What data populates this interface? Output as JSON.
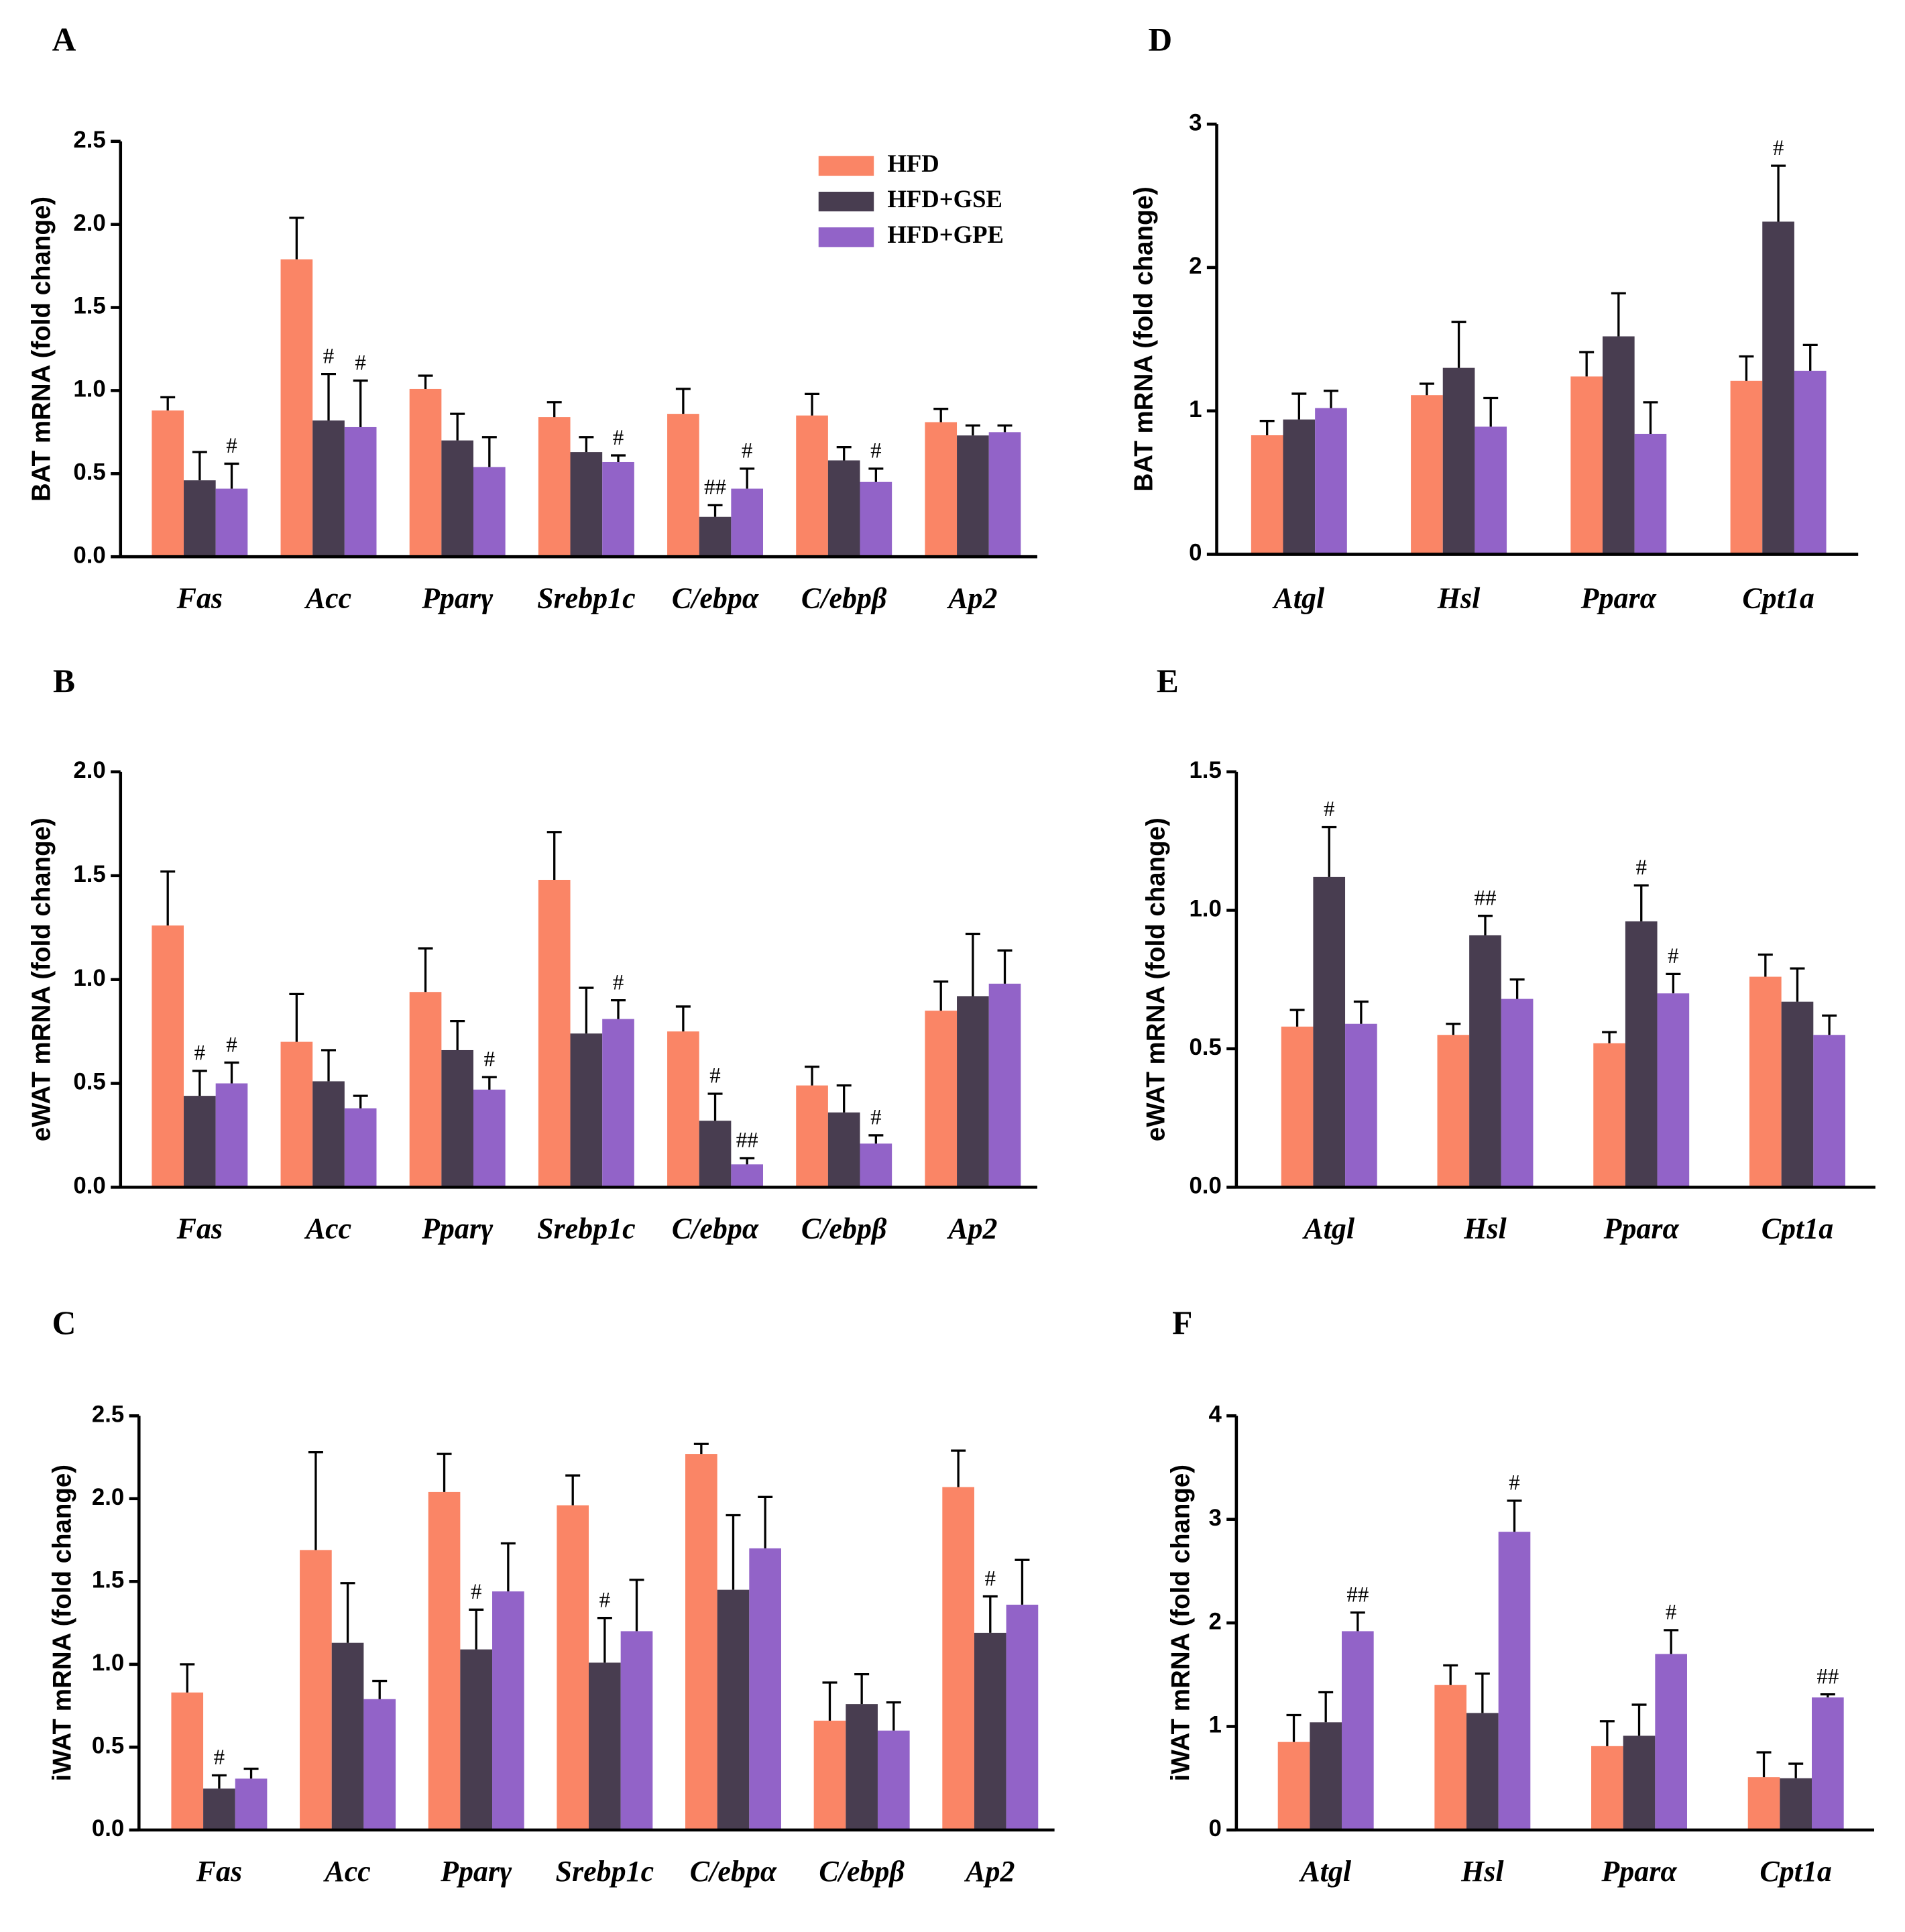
{
  "chart_data": [
    {
      "type": "bar",
      "panel_label": "A",
      "ylabel": "BAT mRNA (fold change)",
      "legend_position": "upper right",
      "categories": [
        "Fas",
        "Acc",
        "Pparγ",
        "Srebp1c",
        "C/ebpα",
        "C/ebpβ",
        "Ap2"
      ],
      "ylim": [
        0,
        2.5
      ],
      "yticks": [
        {
          "value": 0,
          "label": "0.0"
        },
        0.5,
        {
          "value": 1,
          "label": "1.0"
        },
        1.5,
        {
          "value": 2,
          "label": "2.0"
        },
        2.5
      ],
      "series": [
        {
          "name": "HFD",
          "color": "#fa8566",
          "values": [
            0.88,
            1.79,
            1.01,
            0.84,
            0.86,
            0.85,
            0.81
          ],
          "errors": [
            0.08,
            0.25,
            0.08,
            0.09,
            0.15,
            0.13,
            0.08
          ]
        },
        {
          "name": "HFD+GSE",
          "color": "#483d50",
          "values": [
            0.46,
            0.82,
            0.7,
            0.63,
            0.24,
            0.58,
            0.73
          ],
          "errors": [
            0.17,
            0.28,
            0.16,
            0.09,
            0.07,
            0.08,
            0.06
          ],
          "annotations": [
            null,
            "#",
            null,
            null,
            "##",
            null,
            null
          ]
        },
        {
          "name": "HFD+GPE",
          "color": "#9263c8",
          "values": [
            0.41,
            0.78,
            0.54,
            0.57,
            0.41,
            0.45,
            0.75
          ],
          "errors": [
            0.15,
            0.28,
            0.18,
            0.04,
            0.12,
            0.08,
            0.04
          ],
          "annotations": [
            "#",
            "#",
            null,
            "#",
            "#",
            "#",
            null
          ]
        }
      ]
    },
    {
      "type": "bar",
      "panel_label": "D",
      "ylabel": "BAT mRNA (fold change)",
      "categories": [
        "Atgl",
        "Hsl",
        "Pparα",
        "Cpt1a"
      ],
      "ylim": [
        0,
        3
      ],
      "yticks": [
        0,
        1,
        2,
        3
      ],
      "series": [
        {
          "color": "#fa8566",
          "values": [
            0.83,
            1.11,
            1.24,
            1.21
          ],
          "errors": [
            0.1,
            0.08,
            0.17,
            0.17
          ]
        },
        {
          "color": "#483d50",
          "values": [
            0.94,
            1.3,
            1.52,
            2.32
          ],
          "errors": [
            0.18,
            0.32,
            0.3,
            0.39
          ],
          "annotations": [
            null,
            null,
            null,
            "#"
          ]
        },
        {
          "color": "#9263c8",
          "values": [
            1.02,
            0.89,
            0.84,
            1.28
          ],
          "errors": [
            0.12,
            0.2,
            0.22,
            0.18
          ]
        }
      ]
    },
    {
      "type": "bar",
      "panel_label": "B",
      "ylabel": "eWAT mRNA (fold change)",
      "categories": [
        "Fas",
        "Acc",
        "Pparγ",
        "Srebp1c",
        "C/ebpα",
        "C/ebpβ",
        "Ap2"
      ],
      "ylim": [
        0,
        2
      ],
      "yticks": [
        {
          "value": 0,
          "label": "0.0"
        },
        0.5,
        {
          "value": 1,
          "label": "1.0"
        },
        1.5,
        {
          "value": 2,
          "label": "2.0"
        }
      ],
      "series": [
        {
          "color": "#fa8566",
          "values": [
            1.26,
            0.7,
            0.94,
            1.48,
            0.75,
            0.49,
            0.85
          ],
          "errors": [
            0.26,
            0.23,
            0.21,
            0.23,
            0.12,
            0.09,
            0.14
          ]
        },
        {
          "color": "#483d50",
          "values": [
            0.44,
            0.51,
            0.66,
            0.74,
            0.32,
            0.36,
            0.92
          ],
          "errors": [
            0.12,
            0.15,
            0.14,
            0.22,
            0.13,
            0.13,
            0.3
          ],
          "annotations": [
            "#",
            null,
            null,
            null,
            "#",
            null,
            null
          ]
        },
        {
          "color": "#9263c8",
          "values": [
            0.5,
            0.38,
            0.47,
            0.81,
            0.11,
            0.21,
            0.98
          ],
          "errors": [
            0.1,
            0.06,
            0.06,
            0.09,
            0.03,
            0.04,
            0.16
          ],
          "annotations": [
            "#",
            null,
            "#",
            "#",
            "##",
            "#",
            null
          ]
        }
      ]
    },
    {
      "type": "bar",
      "panel_label": "E",
      "ylabel": "eWAT mRNA (fold change)",
      "categories": [
        "Atgl",
        "Hsl",
        "Pparα",
        "Cpt1a"
      ],
      "ylim": [
        0,
        1.5
      ],
      "yticks": [
        {
          "value": 0,
          "label": "0.0"
        },
        0.5,
        {
          "value": 1,
          "label": "1.0"
        },
        1.5
      ],
      "series": [
        {
          "color": "#fa8566",
          "values": [
            0.58,
            0.55,
            0.52,
            0.76
          ],
          "errors": [
            0.06,
            0.04,
            0.04,
            0.08
          ]
        },
        {
          "color": "#483d50",
          "values": [
            1.12,
            0.91,
            0.96,
            0.67
          ],
          "errors": [
            0.18,
            0.07,
            0.13,
            0.12
          ],
          "annotations": [
            "#",
            "##",
            "#",
            null
          ]
        },
        {
          "color": "#9263c8",
          "values": [
            0.59,
            0.68,
            0.7,
            0.55
          ],
          "errors": [
            0.08,
            0.07,
            0.07,
            0.07
          ],
          "annotations": [
            null,
            null,
            "#",
            null
          ]
        }
      ]
    },
    {
      "type": "bar",
      "panel_label": "C",
      "ylabel": "iWAT mRNA (fold change)",
      "categories": [
        "Fas",
        "Acc",
        "Pparγ",
        "Srebp1c",
        "C/ebpα",
        "C/ebpβ",
        "Ap2"
      ],
      "ylim": [
        0,
        2.5
      ],
      "yticks": [
        {
          "value": 0,
          "label": "0.0"
        },
        0.5,
        {
          "value": 1,
          "label": "1.0"
        },
        1.5,
        {
          "value": 2,
          "label": "2.0"
        },
        2.5
      ],
      "series": [
        {
          "color": "#fa8566",
          "values": [
            0.83,
            1.69,
            2.04,
            1.96,
            2.27,
            0.66,
            2.07
          ],
          "errors": [
            0.17,
            0.59,
            0.23,
            0.18,
            0.06,
            0.23,
            0.22
          ]
        },
        {
          "color": "#483d50",
          "values": [
            0.25,
            1.13,
            1.09,
            1.01,
            1.45,
            0.76,
            1.19
          ],
          "errors": [
            0.08,
            0.36,
            0.24,
            0.27,
            0.45,
            0.18,
            0.22
          ],
          "annotations": [
            "#",
            null,
            "#",
            "#",
            null,
            null,
            "#"
          ]
        },
        {
          "color": "#9263c8",
          "values": [
            0.31,
            0.79,
            1.44,
            1.2,
            1.7,
            0.6,
            1.36
          ],
          "errors": [
            0.06,
            0.11,
            0.29,
            0.31,
            0.31,
            0.17,
            0.27
          ]
        }
      ]
    },
    {
      "type": "bar",
      "panel_label": "F",
      "ylabel": "iWAT mRNA (fold change)",
      "categories": [
        "Atgl",
        "Hsl",
        "Pparα",
        "Cpt1a"
      ],
      "ylim": [
        0,
        4
      ],
      "yticks": [
        0,
        1,
        2,
        3,
        4
      ],
      "series": [
        {
          "color": "#fa8566",
          "values": [
            0.85,
            1.4,
            0.81,
            0.51
          ],
          "errors": [
            0.26,
            0.19,
            0.24,
            0.24
          ]
        },
        {
          "color": "#483d50",
          "values": [
            1.04,
            1.13,
            0.91,
            0.5
          ],
          "errors": [
            0.29,
            0.38,
            0.3,
            0.14
          ]
        },
        {
          "color": "#9263c8",
          "values": [
            1.92,
            2.88,
            1.7,
            1.28
          ],
          "errors": [
            0.18,
            0.3,
            0.23,
            0.03
          ],
          "annotations": [
            "##",
            "#",
            "#",
            "##"
          ]
        }
      ]
    }
  ]
}
